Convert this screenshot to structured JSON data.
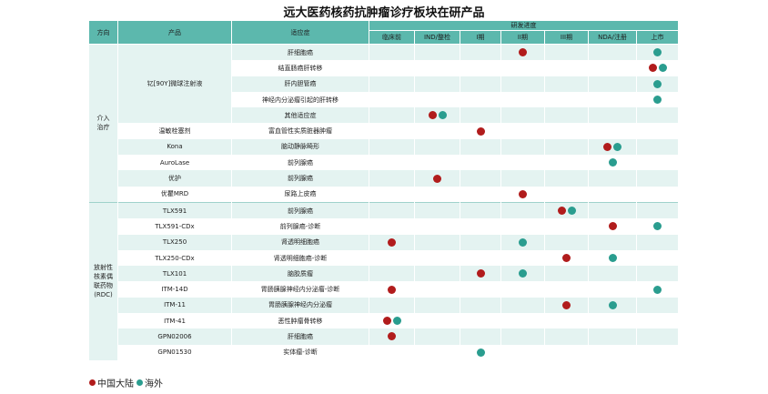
{
  "title": "远大医药核药抗肿瘤诊疗板块在研产品",
  "colors": {
    "china": "#b11c1c",
    "overseas": "#2a9d8f",
    "header": "#5cb8ad",
    "band": "#e4f3f1"
  },
  "header": {
    "direction": "方向",
    "product": "产品",
    "indication": "适应症",
    "progress": "研发进度",
    "stages": [
      "临床前",
      "IND/整检",
      "I期",
      "II期",
      "III期",
      "NDA/注册",
      "上市"
    ]
  },
  "groups": [
    {
      "label": "介入\n治疗",
      "rows": 10
    },
    {
      "label": "放射性\n核素偶\n联药物\n(RDC)",
      "rows": 10
    }
  ],
  "yttrium_group": {
    "product": "钇[90Y]微球注射液",
    "rows": 5
  },
  "rows": [
    {
      "product": "",
      "indication": "肝细胞癌",
      "dots": [
        {
          "stage": 3,
          "region": "china"
        },
        {
          "stage": 6,
          "region": "overseas"
        }
      ]
    },
    {
      "product": "",
      "indication": "结直肠癌肝转移",
      "dots": [
        {
          "stage": 6,
          "region": "china"
        },
        {
          "stage": 6,
          "region": "overseas"
        }
      ]
    },
    {
      "product": "",
      "indication": "肝内胆管癌",
      "dots": [
        {
          "stage": 6,
          "region": "overseas"
        }
      ]
    },
    {
      "product": "",
      "indication": "神经内分泌瘤引起的肝转移",
      "dots": [
        {
          "stage": 6,
          "region": "overseas"
        }
      ]
    },
    {
      "product": "",
      "indication": "其他适应症",
      "dots": [
        {
          "stage": 1,
          "region": "china"
        },
        {
          "stage": 1,
          "region": "overseas"
        }
      ]
    },
    {
      "product": "温敏栓塞剂",
      "indication": "富血管性实质脏器肿瘤",
      "dots": [
        {
          "stage": 2,
          "region": "china"
        }
      ]
    },
    {
      "product": "Kona",
      "indication": "脑动静脉畸形",
      "dots": [
        {
          "stage": 5,
          "region": "china"
        },
        {
          "stage": 5,
          "region": "overseas"
        }
      ]
    },
    {
      "product": "AuroLase",
      "indication": "前列腺癌",
      "dots": [
        {
          "stage": 5,
          "region": "overseas"
        }
      ]
    },
    {
      "product": "优护",
      "indication": "前列腺癌",
      "dots": [
        {
          "stage": 1,
          "region": "china"
        }
      ]
    },
    {
      "product": "优瞿MRD",
      "indication": "尿路上皮癌",
      "dots": [
        {
          "stage": 3,
          "region": "china"
        }
      ]
    },
    {
      "product": "TLX591",
      "indication": "前列腺癌",
      "dots": [
        {
          "stage": 4,
          "region": "china"
        },
        {
          "stage": 4,
          "region": "overseas"
        }
      ]
    },
    {
      "product": "TLX591-CDx",
      "indication": "前列腺癌-诊断",
      "dots": [
        {
          "stage": 5,
          "region": "china"
        },
        {
          "stage": 6,
          "region": "overseas"
        }
      ]
    },
    {
      "product": "TLX250",
      "indication": "肾透明细胞癌",
      "dots": [
        {
          "stage": 0,
          "region": "china"
        },
        {
          "stage": 3,
          "region": "overseas"
        }
      ]
    },
    {
      "product": "TLX250-CDx",
      "indication": "肾透明细胞癌-诊断",
      "dots": [
        {
          "stage": 4,
          "region": "china"
        },
        {
          "stage": 5,
          "region": "overseas"
        }
      ]
    },
    {
      "product": "TLX101",
      "indication": "脑胶质瘤",
      "dots": [
        {
          "stage": 2,
          "region": "china"
        },
        {
          "stage": 3,
          "region": "overseas"
        }
      ]
    },
    {
      "product": "ITM-14D",
      "indication": "胃肠胰腺神经内分泌瘤-诊断",
      "dots": [
        {
          "stage": 0,
          "region": "china"
        },
        {
          "stage": 6,
          "region": "overseas"
        }
      ]
    },
    {
      "product": "ITM-11",
      "indication": "胃肠胰腺神经内分泌瘤",
      "dots": [
        {
          "stage": 4,
          "region": "china"
        },
        {
          "stage": 5,
          "region": "overseas"
        }
      ]
    },
    {
      "product": "ITM-41",
      "indication": "恶性肿瘤骨转移",
      "dots": [
        {
          "stage": 0,
          "region": "china"
        },
        {
          "stage": 0,
          "region": "overseas"
        }
      ]
    },
    {
      "product": "GPN02006",
      "indication": "肝细胞癌",
      "dots": [
        {
          "stage": 0,
          "region": "china"
        }
      ]
    },
    {
      "product": "GPN01530",
      "indication": "实体瘤-诊断",
      "dots": [
        {
          "stage": 2,
          "region": "overseas"
        }
      ]
    }
  ],
  "legend": [
    {
      "label": "中国大陆",
      "region": "china"
    },
    {
      "label": "海外",
      "region": "overseas"
    }
  ]
}
